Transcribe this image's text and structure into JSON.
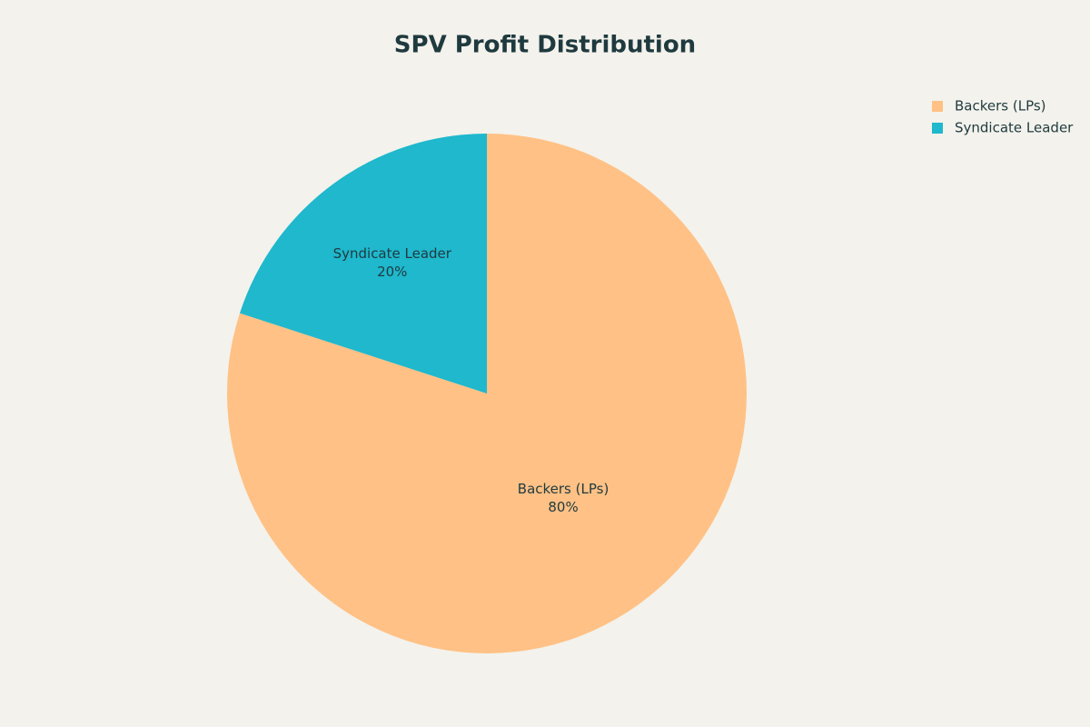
{
  "chart_data": {
    "type": "pie",
    "title": "SPV Profit Distribution",
    "categories": [
      "Backers (LPs)",
      "Syndicate Leader"
    ],
    "values": [
      80,
      20
    ],
    "value_labels": [
      "80%",
      "20%"
    ],
    "colors": [
      "#ffc185",
      "#1fb8cd"
    ],
    "legend": "top-right"
  }
}
